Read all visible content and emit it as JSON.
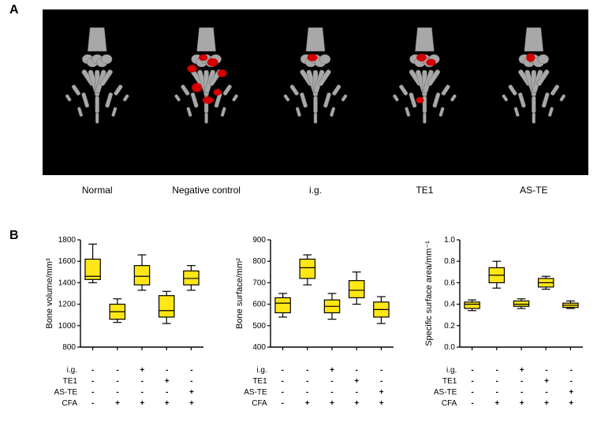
{
  "panelA": {
    "label": "A",
    "background": "#000000",
    "images_labels": [
      "Normal",
      "Negative control",
      "i.g.",
      "TE1",
      "AS-TE"
    ],
    "lesion_color": "#d40000",
    "bone_color": "#a8a8a8",
    "lesion_intensity": [
      0,
      5,
      1,
      2,
      1
    ],
    "label_fontsize": 12
  },
  "panelB": {
    "label": "B",
    "box_fill": "#ffe615",
    "box_stroke": "#000000",
    "box_stroke_width": 1.2,
    "whisker_width": 1.2,
    "box_rel_width": 0.62,
    "axis_color": "#000000",
    "tick_fontsize": 10,
    "ylabel_fontsize": 11,
    "charts": [
      {
        "ylabel": "Bone volume/mm³",
        "ylim": [
          800,
          1800
        ],
        "ytick_step": 200,
        "groups": [
          {
            "min": 1400,
            "q1": 1430,
            "med": 1460,
            "q3": 1620,
            "max": 1760
          },
          {
            "min": 1030,
            "q1": 1060,
            "med": 1130,
            "q3": 1200,
            "max": 1250
          },
          {
            "min": 1330,
            "q1": 1380,
            "med": 1460,
            "q3": 1560,
            "max": 1660
          },
          {
            "min": 1020,
            "q1": 1080,
            "med": 1140,
            "q3": 1280,
            "max": 1320
          },
          {
            "min": 1330,
            "q1": 1380,
            "med": 1440,
            "q3": 1510,
            "max": 1560
          }
        ]
      },
      {
        "ylabel": "Bone surface/mm²",
        "ylim": [
          400,
          900
        ],
        "ytick_step": 100,
        "groups": [
          {
            "min": 540,
            "q1": 560,
            "med": 605,
            "q3": 630,
            "max": 650
          },
          {
            "min": 690,
            "q1": 720,
            "med": 770,
            "q3": 810,
            "max": 830
          },
          {
            "min": 530,
            "q1": 560,
            "med": 590,
            "q3": 620,
            "max": 650
          },
          {
            "min": 600,
            "q1": 630,
            "med": 665,
            "q3": 710,
            "max": 750
          },
          {
            "min": 510,
            "q1": 540,
            "med": 575,
            "q3": 610,
            "max": 635
          }
        ]
      },
      {
        "ylabel": "Specific surface area/mm⁻¹",
        "ylim": [
          0.0,
          1.0
        ],
        "ytick_step": 0.2,
        "groups": [
          {
            "min": 0.34,
            "q1": 0.36,
            "med": 0.4,
            "q3": 0.42,
            "max": 0.44
          },
          {
            "min": 0.55,
            "q1": 0.6,
            "med": 0.67,
            "q3": 0.74,
            "max": 0.8
          },
          {
            "min": 0.36,
            "q1": 0.38,
            "med": 0.4,
            "q3": 0.43,
            "max": 0.45
          },
          {
            "min": 0.54,
            "q1": 0.56,
            "med": 0.6,
            "q3": 0.64,
            "max": 0.66
          },
          {
            "min": 0.36,
            "q1": 0.37,
            "med": 0.39,
            "q3": 0.41,
            "max": 0.43
          }
        ]
      }
    ],
    "treatments": {
      "rows": [
        "i.g.",
        "TE1",
        "AS-TE",
        "CFA"
      ],
      "matrix": [
        [
          "-",
          "-",
          "+",
          "-",
          "-"
        ],
        [
          "-",
          "-",
          "-",
          "+",
          "-"
        ],
        [
          "-",
          "-",
          "-",
          "-",
          "+"
        ],
        [
          "-",
          "+",
          "+",
          "+",
          "+"
        ]
      ]
    }
  }
}
